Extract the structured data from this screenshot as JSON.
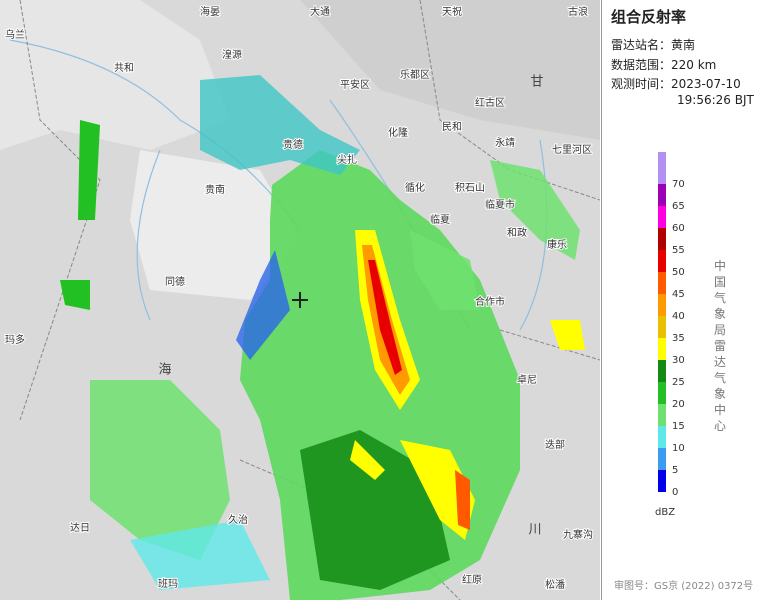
{
  "panel": {
    "title": "组合反射率",
    "station": {
      "label": "雷达站名：",
      "value": "黄南"
    },
    "range": {
      "label": "数据范围：",
      "value": "220 km"
    },
    "time": {
      "label": "观测时间：",
      "date": "2023-07-10",
      "clock": "19:56:26 BJT"
    }
  },
  "legend": {
    "items": [
      {
        "value": 0,
        "color": "#0000e8"
      },
      {
        "value": 5,
        "color": "#3c9cf0"
      },
      {
        "value": 10,
        "color": "#5fe8e8"
      },
      {
        "value": 15,
        "color": "#6fe06f"
      },
      {
        "value": 20,
        "color": "#22c022"
      },
      {
        "value": 25,
        "color": "#138a13"
      },
      {
        "value": 30,
        "color": "#ffff00"
      },
      {
        "value": 35,
        "color": "#e8c000"
      },
      {
        "value": 40,
        "color": "#ff9a00"
      },
      {
        "value": 45,
        "color": "#ff5a00"
      },
      {
        "value": 50,
        "color": "#e80000"
      },
      {
        "value": 55,
        "color": "#b00000"
      },
      {
        "value": 60,
        "color": "#ff00e0"
      },
      {
        "value": 65,
        "color": "#9a00b4"
      },
      {
        "value": 70,
        "color": "#b090f0"
      }
    ],
    "unit": "dBZ"
  },
  "vertical_credit": "中国气象局雷达气象中心",
  "map_credit": "审图号：GS京 (2022) 0372号",
  "map_labels": [
    "乌兰",
    "海晏",
    "大通",
    "天祝",
    "古浪",
    "湟源",
    "平安区",
    "乐都区",
    "共和",
    "红古区",
    "化隆",
    "民和",
    "永靖",
    "七里河区",
    "贵德",
    "尖扎",
    "循化",
    "积石山",
    "临夏市",
    "贵南",
    "临夏",
    "和政",
    "康乐",
    "同德",
    "合作市",
    "玛多",
    "卓尼",
    "迭部",
    "久治",
    "达日",
    "班玛",
    "红原",
    "松潘",
    "九寨沟",
    "海",
    "川",
    "甘"
  ]
}
